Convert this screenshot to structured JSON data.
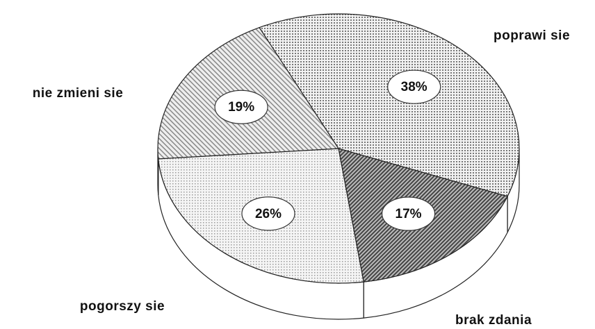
{
  "chart_data": {
    "type": "pie",
    "categories": [
      "poprawi sie",
      "brak zdania",
      "pogorszy sie",
      "nie zmieni sie"
    ],
    "values": [
      38,
      17,
      26,
      19
    ],
    "value_labels": [
      "38%",
      "17%",
      "26%",
      "19%"
    ]
  }
}
